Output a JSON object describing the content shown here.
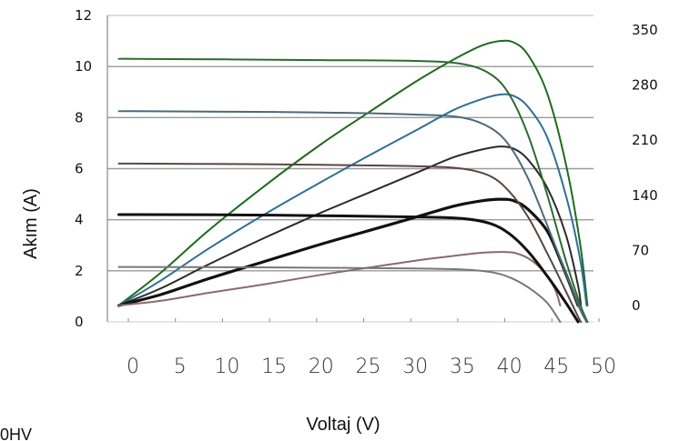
{
  "chart_data": {
    "type": "line",
    "xlabel": "Voltaj (V)",
    "ylabel": "Akım (A)",
    "x_ticks": [
      "0",
      "5",
      "10",
      "15",
      "20",
      "25",
      "30",
      "35",
      "40",
      "45",
      "50"
    ],
    "y_left_ticks": [
      "0",
      "2",
      "4",
      "6",
      "8",
      "10",
      "12"
    ],
    "y_right_ticks": [
      "0",
      "70",
      "140",
      "210",
      "280",
      "350"
    ],
    "xlim": [
      0,
      50
    ],
    "ylim_left": [
      0,
      12
    ],
    "ylim_right": [
      0,
      350
    ],
    "grid": "horizontal",
    "corner_text": "0HV",
    "current_curves": [
      {
        "color": "#2e6b2e",
        "points": [
          [
            -1.5,
            10.3
          ],
          [
            0,
            10.3
          ],
          [
            10,
            10.28
          ],
          [
            20,
            10.25
          ],
          [
            30,
            10.22
          ],
          [
            35,
            10.1
          ],
          [
            38,
            9.7
          ],
          [
            40,
            8.9
          ],
          [
            42,
            7.3
          ],
          [
            44,
            5.0
          ],
          [
            46,
            2.4
          ],
          [
            47.5,
            0.7
          ],
          [
            48.3,
            0
          ]
        ]
      },
      {
        "color": "#4a6a78",
        "points": [
          [
            -1.5,
            8.25
          ],
          [
            0,
            8.25
          ],
          [
            10,
            8.23
          ],
          [
            20,
            8.2
          ],
          [
            30,
            8.12
          ],
          [
            35,
            8.0
          ],
          [
            38,
            7.6
          ],
          [
            40,
            6.9
          ],
          [
            42,
            5.6
          ],
          [
            44,
            3.8
          ],
          [
            46,
            1.9
          ],
          [
            47.5,
            0.5
          ],
          [
            48.2,
            0
          ]
        ]
      },
      {
        "color": "#5a4545",
        "points": [
          [
            -1.5,
            6.2
          ],
          [
            0,
            6.2
          ],
          [
            10,
            6.18
          ],
          [
            20,
            6.15
          ],
          [
            30,
            6.1
          ],
          [
            35,
            6.0
          ],
          [
            38,
            5.7
          ],
          [
            40,
            5.1
          ],
          [
            42,
            4.1
          ],
          [
            44,
            2.7
          ],
          [
            46,
            1.2
          ],
          [
            47.3,
            0.2
          ],
          [
            47.6,
            0
          ]
        ]
      },
      {
        "color": "#111111",
        "width": 3,
        "points": [
          [
            -1.5,
            4.2
          ],
          [
            0,
            4.2
          ],
          [
            10,
            4.19
          ],
          [
            20,
            4.16
          ],
          [
            30,
            4.11
          ],
          [
            35,
            4.05
          ],
          [
            38,
            3.85
          ],
          [
            40,
            3.45
          ],
          [
            42,
            2.75
          ],
          [
            44,
            1.8
          ],
          [
            46,
            0.75
          ],
          [
            47.3,
            0
          ]
        ]
      },
      {
        "color": "#777777",
        "points": [
          [
            -1.5,
            2.15
          ],
          [
            0,
            2.15
          ],
          [
            10,
            2.14
          ],
          [
            20,
            2.12
          ],
          [
            30,
            2.09
          ],
          [
            35,
            2.05
          ],
          [
            38,
            1.95
          ],
          [
            40,
            1.75
          ],
          [
            42,
            1.35
          ],
          [
            44,
            0.75
          ],
          [
            45.4,
            0
          ]
        ]
      }
    ],
    "power_curves": [
      {
        "color": "#1e6b1e",
        "points": [
          [
            -1.5,
            0.0
          ],
          [
            3,
            42
          ],
          [
            8,
            95
          ],
          [
            14,
            152
          ],
          [
            20,
            205
          ],
          [
            25,
            245
          ],
          [
            30,
            284
          ],
          [
            34,
            312
          ],
          [
            37,
            330
          ],
          [
            39,
            336
          ],
          [
            40.5,
            334
          ],
          [
            42,
            318
          ],
          [
            44,
            270
          ],
          [
            46,
            180
          ],
          [
            47.5,
            80
          ],
          [
            48.3,
            0
          ]
        ]
      },
      {
        "color": "#2f6f95",
        "points": [
          [
            -1.5,
            0.0
          ],
          [
            3,
            32
          ],
          [
            8,
            72
          ],
          [
            14,
            116
          ],
          [
            20,
            157
          ],
          [
            25,
            190
          ],
          [
            30,
            222
          ],
          [
            34,
            248
          ],
          [
            37,
            262
          ],
          [
            39,
            268
          ],
          [
            40.5,
            266
          ],
          [
            42,
            252
          ],
          [
            44,
            214
          ],
          [
            46,
            140
          ],
          [
            47.5,
            60
          ],
          [
            48.2,
            0
          ]
        ]
      },
      {
        "color": "#2a2a2a",
        "points": [
          [
            -1.5,
            0.0
          ],
          [
            3,
            22
          ],
          [
            8,
            52
          ],
          [
            14,
            86
          ],
          [
            20,
            118
          ],
          [
            25,
            143
          ],
          [
            30,
            168
          ],
          [
            34,
            188
          ],
          [
            37,
            198
          ],
          [
            39,
            202
          ],
          [
            40.5,
            199
          ],
          [
            42,
            185
          ],
          [
            44,
            150
          ],
          [
            46,
            90
          ],
          [
            47.3,
            25
          ],
          [
            47.6,
            0
          ]
        ]
      },
      {
        "color": "#111111",
        "width": 3.2,
        "points": [
          [
            -1.5,
            0.0
          ],
          [
            3,
            14
          ],
          [
            8,
            34
          ],
          [
            14,
            56
          ],
          [
            20,
            78
          ],
          [
            25,
            95
          ],
          [
            30,
            112
          ],
          [
            34,
            126
          ],
          [
            37,
            133
          ],
          [
            39,
            135
          ],
          [
            40.5,
            133
          ],
          [
            42,
            122
          ],
          [
            44,
            95
          ],
          [
            45.5,
            55
          ],
          [
            47.3,
            0
          ]
        ]
      },
      {
        "color": "#8a6a6a",
        "points": [
          [
            -1.5,
            0.0
          ],
          [
            3,
            6
          ],
          [
            8,
            16
          ],
          [
            14,
            27
          ],
          [
            20,
            39
          ],
          [
            25,
            48
          ],
          [
            30,
            57
          ],
          [
            34,
            63
          ],
          [
            37,
            67
          ],
          [
            39,
            68
          ],
          [
            40.5,
            67
          ],
          [
            42,
            60
          ],
          [
            43.5,
            45
          ],
          [
            44.8,
            22
          ],
          [
            45.4,
            0
          ]
        ]
      }
    ],
    "colors": {
      "grid": "#9a9a9a",
      "axis": "#888888"
    }
  }
}
